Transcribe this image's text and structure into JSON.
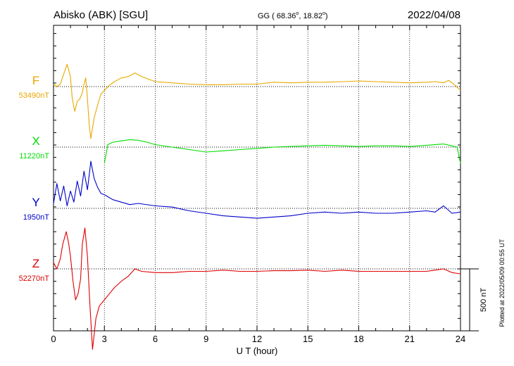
{
  "header": {
    "station": "Abisko (ABK)  [SGU]",
    "coords_prefix": "GG ( 68.36",
    "coords_lat_deg": "o",
    "coords_mid": ",  18.82",
    "coords_lon_deg": "o",
    "coords_suffix": ")",
    "date": "2022/04/08"
  },
  "side_note": "Plotted at 2022/05/09 00:55 UT",
  "colors": {
    "F": "#e8a800",
    "X": "#00dd00",
    "Y": "#0000cc",
    "Z": "#dd0000"
  },
  "chart_data": {
    "type": "line",
    "xlabel": "U T (hour)",
    "xlim": [
      0,
      24
    ],
    "x_ticks": [
      0,
      3,
      6,
      9,
      12,
      15,
      18,
      21,
      24
    ],
    "scale_bar": "500 nT",
    "grid": true,
    "series": [
      {
        "name": "F",
        "baseline_label": "53490nT",
        "x": [
          0,
          0.2,
          0.4,
          0.55,
          0.8,
          1.0,
          1.1,
          1.25,
          1.4,
          1.55,
          1.7,
          1.8,
          1.9,
          2.0,
          2.1,
          2.2,
          2.4,
          2.6,
          2.8,
          3.0,
          3.3,
          3.6,
          4.0,
          4.4,
          4.8,
          5.2,
          6,
          7,
          8,
          9,
          10,
          11,
          12,
          13,
          14,
          15,
          16,
          17,
          18,
          19,
          20,
          21,
          22,
          22.5,
          23,
          23.3,
          23.6,
          24
        ],
        "values": [
          20,
          0,
          20,
          80,
          180,
          80,
          -90,
          -200,
          -120,
          -100,
          -50,
          20,
          70,
          -100,
          -300,
          -420,
          -250,
          -150,
          -60,
          -30,
          10,
          40,
          70,
          80,
          110,
          80,
          40,
          30,
          20,
          15,
          15,
          20,
          20,
          35,
          30,
          35,
          35,
          40,
          45,
          40,
          35,
          30,
          35,
          40,
          30,
          50,
          20,
          -30
        ]
      },
      {
        "name": "X",
        "baseline_label": "11220nT",
        "x": [
          3.0,
          3.2,
          3.5,
          4.0,
          4.5,
          5.0,
          5.5,
          6.0,
          7.0,
          8.0,
          9.0,
          10.0,
          11.0,
          12.0,
          13.0,
          14.0,
          15.0,
          16.0,
          17.0,
          18.0,
          19.0,
          20.0,
          21.0,
          22.0,
          23.0,
          23.5,
          23.8,
          24.0
        ],
        "values": [
          -130,
          20,
          40,
          50,
          60,
          55,
          40,
          20,
          0,
          -20,
          -40,
          -30,
          -20,
          -10,
          0,
          5,
          10,
          15,
          10,
          5,
          10,
          10,
          5,
          15,
          25,
          10,
          0,
          -130
        ]
      },
      {
        "name": "Y",
        "baseline_label": "1950nT",
        "x": [
          0,
          0.2,
          0.4,
          0.6,
          0.8,
          1.0,
          1.2,
          1.4,
          1.6,
          1.8,
          2.0,
          2.2,
          2.4,
          2.6,
          2.8,
          3.0,
          3.5,
          4.0,
          4.5,
          5.0,
          6.0,
          7.0,
          8.0,
          9.0,
          10.0,
          11.0,
          12.0,
          13.0,
          14.0,
          15.0,
          16.0,
          17.0,
          18.0,
          19.0,
          20.0,
          21.0,
          22.0,
          22.5,
          23.0,
          23.5,
          24.0
        ],
        "values": [
          40,
          200,
          60,
          180,
          20,
          140,
          50,
          220,
          100,
          300,
          150,
          380,
          240,
          170,
          120,
          110,
          70,
          50,
          30,
          40,
          20,
          10,
          -20,
          -40,
          -60,
          -70,
          -80,
          -70,
          -60,
          -40,
          -30,
          -40,
          -30,
          -40,
          -40,
          -30,
          -20,
          -30,
          20,
          -40,
          -30
        ]
      },
      {
        "name": "Z",
        "baseline_label": "52270nT",
        "x": [
          0,
          0.2,
          0.4,
          0.55,
          0.75,
          0.9,
          1.0,
          1.15,
          1.3,
          1.45,
          1.6,
          1.7,
          1.85,
          2.0,
          2.15,
          2.3,
          2.5,
          2.7,
          3.0,
          3.3,
          3.6,
          4.0,
          4.4,
          4.8,
          5.2,
          6,
          7,
          8,
          9,
          10,
          11,
          12,
          13,
          14,
          15,
          16,
          17,
          18,
          19,
          20,
          21,
          22,
          22.5,
          23,
          23.5,
          24
        ],
        "values": [
          50,
          0,
          80,
          200,
          300,
          200,
          100,
          -100,
          -250,
          -200,
          -80,
          200,
          330,
          100,
          -300,
          -650,
          -400,
          -300,
          -250,
          -200,
          -150,
          -100,
          -60,
          0,
          -20,
          -30,
          -30,
          -20,
          -20,
          -10,
          -20,
          -20,
          -15,
          -15,
          -10,
          -20,
          -10,
          -20,
          -20,
          -20,
          -20,
          -20,
          -10,
          0,
          -30,
          -40
        ]
      }
    ]
  }
}
